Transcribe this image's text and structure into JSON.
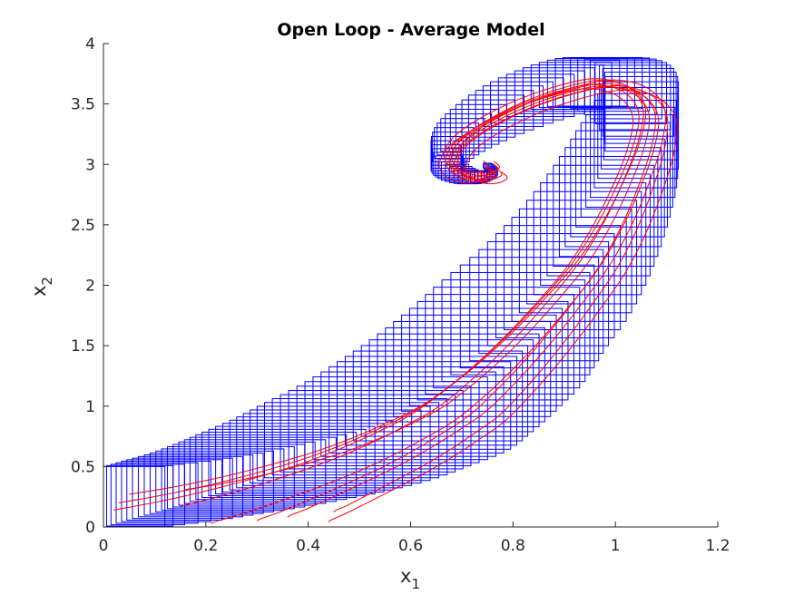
{
  "chart_data": {
    "type": "line",
    "title": "Open Loop - Average Model",
    "xlabel": "x",
    "xlabel_subscript": "1",
    "ylabel": "x",
    "ylabel_subscript": "2",
    "xlim": [
      0,
      1.2
    ],
    "ylim": [
      0,
      4
    ],
    "xticks": [
      "0",
      "0.2",
      "0.4",
      "0.6",
      "0.8",
      "1",
      "1.2"
    ],
    "yticks": [
      "0",
      "0.5",
      "1",
      "1.5",
      "2",
      "2.5",
      "3",
      "3.5",
      "4"
    ],
    "grid": false,
    "legend": "none",
    "colors": {
      "boxes": "#0000ff",
      "trajectories": "#ff0000",
      "axes": "#262626"
    },
    "series": [
      {
        "kind": "box-enclosure",
        "centers": [
          [
            0.06,
            0.25
          ],
          [
            0.13,
            0.3
          ],
          [
            0.2,
            0.36
          ],
          [
            0.27,
            0.43
          ],
          [
            0.34,
            0.51
          ],
          [
            0.41,
            0.6
          ],
          [
            0.48,
            0.71
          ],
          [
            0.55,
            0.84
          ],
          [
            0.62,
            0.99
          ],
          [
            0.68,
            1.17
          ],
          [
            0.74,
            1.38
          ],
          [
            0.8,
            1.62
          ],
          [
            0.86,
            1.89
          ],
          [
            0.92,
            2.19
          ],
          [
            0.97,
            2.52
          ],
          [
            1.01,
            2.86
          ],
          [
            1.04,
            3.18
          ],
          [
            1.05,
            3.45
          ],
          [
            1.02,
            3.62
          ],
          [
            0.96,
            3.68
          ],
          [
            0.89,
            3.62
          ],
          [
            0.81,
            3.5
          ],
          [
            0.74,
            3.35
          ],
          [
            0.69,
            3.2
          ],
          [
            0.67,
            3.06
          ],
          [
            0.68,
            2.96
          ],
          [
            0.71,
            2.9
          ],
          [
            0.74,
            2.9
          ],
          [
            0.76,
            2.94
          ],
          [
            0.75,
            2.99
          ]
        ],
        "half_widths": [
          [
            0.06,
            0.25
          ],
          [
            0.09,
            0.25
          ],
          [
            0.11,
            0.25
          ],
          [
            0.13,
            0.26
          ],
          [
            0.15,
            0.27
          ],
          [
            0.16,
            0.29
          ],
          [
            0.17,
            0.31
          ],
          [
            0.17,
            0.33
          ],
          [
            0.17,
            0.36
          ],
          [
            0.16,
            0.38
          ],
          [
            0.15,
            0.4
          ],
          [
            0.14,
            0.42
          ],
          [
            0.12,
            0.43
          ],
          [
            0.11,
            0.43
          ],
          [
            0.1,
            0.42
          ],
          [
            0.09,
            0.4
          ],
          [
            0.08,
            0.36
          ],
          [
            0.07,
            0.3
          ],
          [
            0.07,
            0.24
          ],
          [
            0.07,
            0.2
          ],
          [
            0.07,
            0.18
          ],
          [
            0.06,
            0.17
          ],
          [
            0.05,
            0.15
          ],
          [
            0.04,
            0.13
          ],
          [
            0.03,
            0.11
          ],
          [
            0.025,
            0.08
          ],
          [
            0.02,
            0.06
          ],
          [
            0.015,
            0.04
          ],
          [
            0.01,
            0.03
          ],
          [
            0.008,
            0.02
          ]
        ]
      },
      {
        "kind": "trajectories",
        "x0": [
          [
            0.02,
            0.14
          ],
          [
            0.03,
            0.2
          ],
          [
            0.05,
            0.27
          ],
          [
            0.15,
            0.17
          ],
          [
            0.16,
            0.31
          ],
          [
            0.21,
            0.03
          ],
          [
            0.3,
            0.05
          ],
          [
            0.36,
            0.08
          ],
          [
            0.44,
            0.04
          ],
          [
            0.45,
            0.12
          ]
        ]
      }
    ]
  }
}
